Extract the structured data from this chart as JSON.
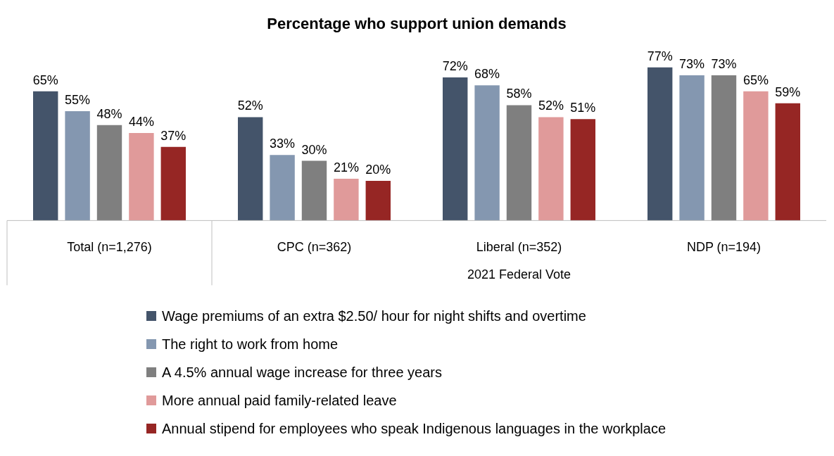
{
  "chart_data": {
    "type": "bar",
    "title": "Percentage who support union demands",
    "categories": [
      "Total (n=1,276)",
      "CPC (n=362)",
      "Liberal (n=352)",
      "NDP (n=194)"
    ],
    "series": [
      {
        "name": "Wage premiums of an extra $2.50/ hour for night shifts and overtime",
        "color": "#44546a",
        "values": [
          65,
          52,
          72,
          77
        ],
        "value_labels": [
          "65%",
          "52%",
          "72%",
          "77%"
        ]
      },
      {
        "name": "The right to work from home",
        "color": "#8497b0",
        "values": [
          55,
          33,
          68,
          73
        ],
        "value_labels": [
          "55%",
          "33%",
          "68%",
          "73%"
        ]
      },
      {
        "name": "A 4.5% annual wage increase for three years",
        "color": "#7f7f7f",
        "values": [
          48,
          30,
          58,
          73
        ],
        "value_labels": [
          "48%",
          "30%",
          "58%",
          "73%"
        ]
      },
      {
        "name": "More annual paid family-related leave",
        "color": "#e09a9a",
        "values": [
          44,
          21,
          52,
          65
        ],
        "value_labels": [
          "44%",
          "21%",
          "52%",
          "65%"
        ]
      },
      {
        "name": "Annual stipend for employees who speak Indigenous languages in the workplace",
        "color": "#962624",
        "values": [
          37,
          20,
          51,
          59
        ],
        "value_labels": [
          "37%",
          "20%",
          "51%",
          "59%"
        ]
      }
    ],
    "legend": "bottom",
    "annotations": [
      "2021 Federal Vote"
    ]
  }
}
